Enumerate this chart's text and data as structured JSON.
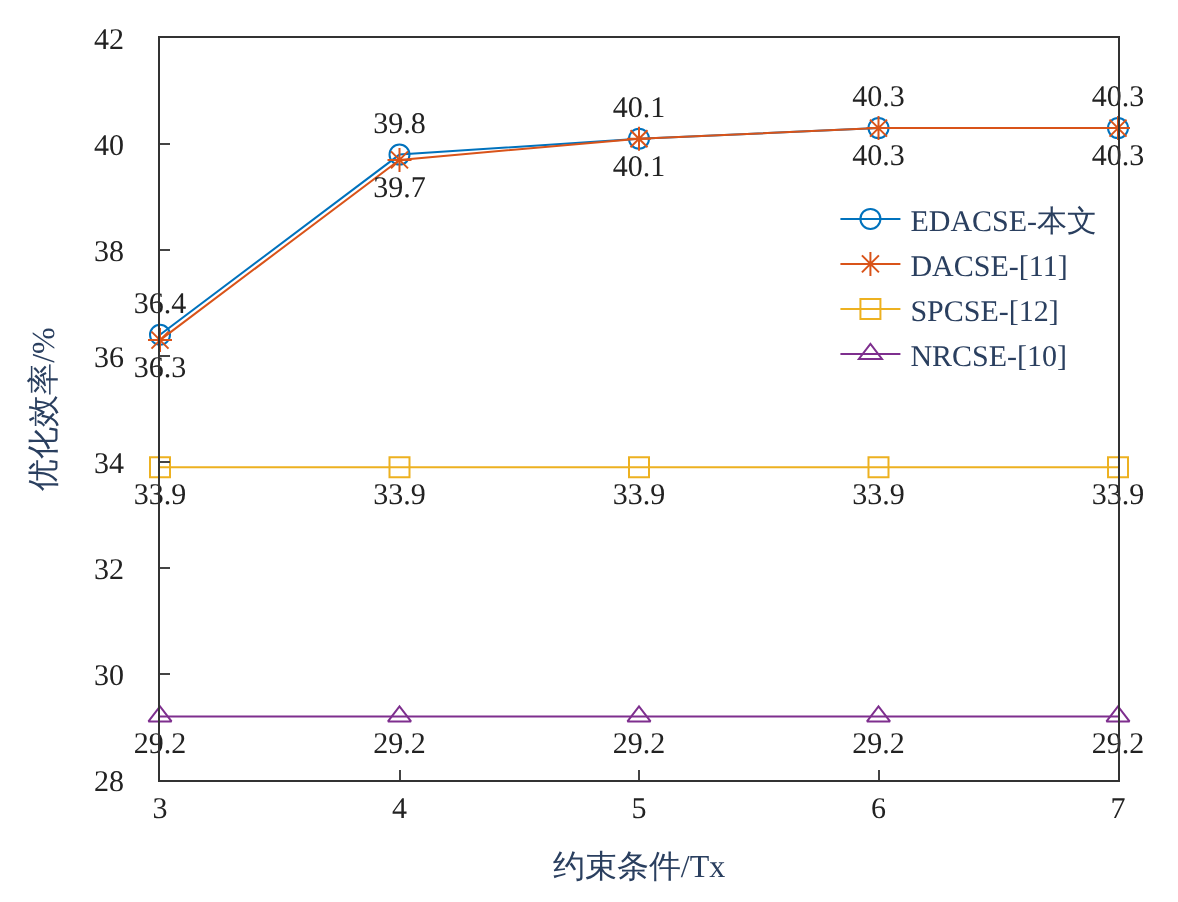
{
  "chart_data": {
    "type": "line",
    "xlabel": "约束条件/Tx",
    "ylabel": "优化效率/%",
    "x": [
      3,
      4,
      5,
      6,
      7
    ],
    "series": [
      {
        "name": "EDACSE-本文",
        "color": "#0072bd",
        "marker": "circle",
        "values": [
          36.4,
          39.8,
          40.1,
          40.3,
          40.3
        ]
      },
      {
        "name": "DACSE-[11]",
        "color": "#d95319",
        "marker": "cross",
        "values": [
          36.3,
          39.7,
          40.1,
          40.3,
          40.3
        ]
      },
      {
        "name": "SPCSE-[12]",
        "color": "#edb120",
        "marker": "square",
        "values": [
          33.9,
          33.9,
          33.9,
          33.9,
          33.9
        ]
      },
      {
        "name": "NRCSE-[10]",
        "color": "#7e2f8e",
        "marker": "triangle",
        "values": [
          29.2,
          29.2,
          29.2,
          29.2,
          29.2
        ]
      }
    ],
    "xlim": [
      3,
      7
    ],
    "xticks": [
      3,
      4,
      5,
      6,
      7
    ],
    "ylim": [
      28,
      42
    ],
    "yticks": [
      28,
      30,
      32,
      34,
      36,
      38,
      40,
      42
    ],
    "data_labels": true,
    "legend": "right",
    "line_style": "solid"
  }
}
